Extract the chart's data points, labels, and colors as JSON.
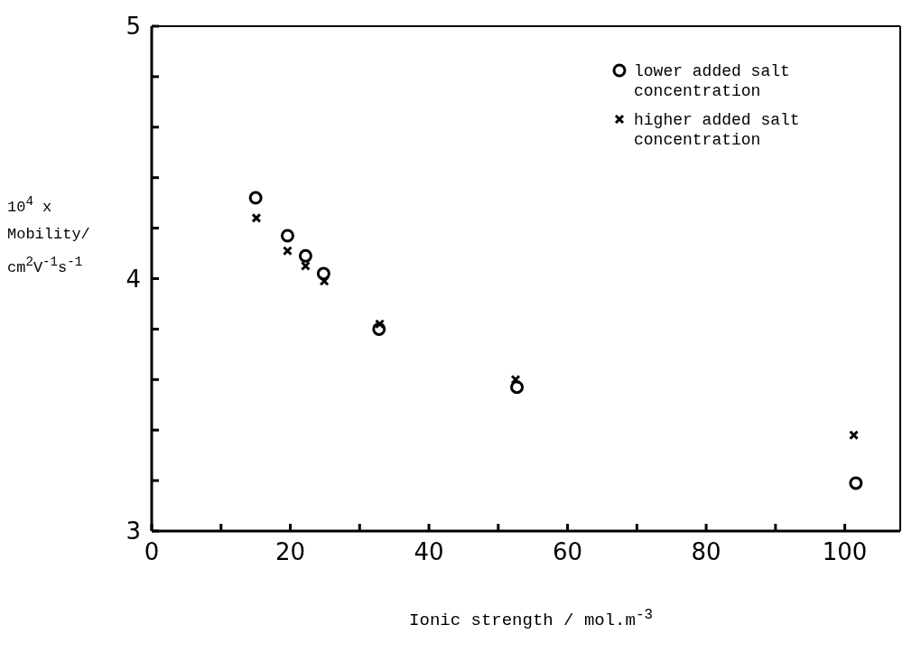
{
  "chart_data": {
    "type": "scatter",
    "xlabel": "Ionic strength / mol.m$^{-3}$",
    "ylabel": "10$^{4}$ x Mobility/ cm$^{2}$V$^{-1}$s$^{-1}$",
    "x": [
      15.0,
      19.6,
      22.2,
      24.8,
      32.8,
      52.7,
      101.6
    ],
    "series": [
      {
        "name": "lower added salt concentration",
        "color": "#000000",
        "marker": "circle",
        "values": [
          4.32,
          4.17,
          4.09,
          4.02,
          3.8,
          3.57,
          3.19
        ]
      },
      {
        "name": "higher added salt concentration",
        "color": "#000000",
        "marker": "cross",
        "x": [
          15.1,
          19.6,
          22.2,
          24.9,
          32.9,
          52.5,
          101.3
        ],
        "values": [
          4.24,
          4.11,
          4.05,
          3.99,
          3.82,
          3.6,
          3.38
        ]
      }
    ],
    "xlim": [
      0,
      108
    ],
    "ylim": [
      3,
      5
    ],
    "xticks": [
      0,
      {
        "value": 10,
        "label": null
      },
      20,
      {
        "value": 30,
        "label": null
      },
      40,
      {
        "value": 50,
        "label": null
      },
      60,
      {
        "value": 70,
        "label": null
      },
      80,
      {
        "value": 90,
        "label": null
      },
      100
    ],
    "yticks": [
      3,
      {
        "value": 3.2,
        "label": null
      },
      {
        "value": 3.4,
        "label": null
      },
      {
        "value": 3.6,
        "label": null
      },
      {
        "value": 3.8,
        "label": null
      },
      4,
      {
        "value": 4.2,
        "label": null
      },
      {
        "value": 4.4,
        "label": null
      },
      {
        "value": 4.6,
        "label": null
      },
      {
        "value": 4.8,
        "label": null
      },
      5
    ],
    "legend": "top right"
  }
}
